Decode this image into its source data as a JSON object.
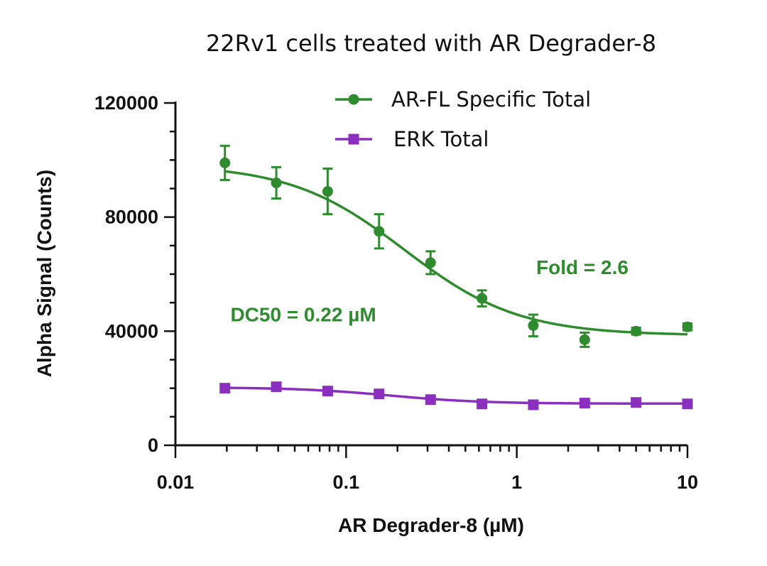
{
  "chart_data": {
    "type": "scatter",
    "title": "22Rv1 cells treated with AR Degrader-8",
    "xlabel": "AR Degrader-8 (µM)",
    "ylabel": "Alpha Signal (Counts)",
    "x_scale": "log",
    "xlim": [
      0.01,
      10
    ],
    "ylim": [
      0,
      120000
    ],
    "x_ticks": [
      0.01,
      0.1,
      1,
      10
    ],
    "x_tick_labels": [
      "0.01",
      "0.1",
      "1",
      "10"
    ],
    "y_ticks": [
      0,
      40000,
      80000,
      120000
    ],
    "y_tick_labels": [
      "0",
      "40000",
      "80000",
      "120000"
    ],
    "legend_position": "top-right",
    "series": [
      {
        "name": "AR-FL Specific Total",
        "color": "#2e8b2e",
        "marker": "circle",
        "x": [
          0.0195,
          0.039,
          0.078,
          0.156,
          0.3125,
          0.625,
          1.25,
          2.5,
          5,
          10
        ],
        "y": [
          99000,
          92000,
          89000,
          75000,
          64000,
          51500,
          42000,
          37000,
          40000,
          41500
        ],
        "error": [
          6000,
          5500,
          8000,
          6000,
          4000,
          2800,
          3800,
          2500,
          1200,
          1200
        ],
        "fit": {
          "top": 98500,
          "bottom": 38500,
          "ec50": 0.22,
          "hill": 1.3
        }
      },
      {
        "name": "ERK Total",
        "color": "#8a2fbe",
        "marker": "square",
        "x": [
          0.0195,
          0.039,
          0.078,
          0.156,
          0.3125,
          0.625,
          1.25,
          2.5,
          5,
          10
        ],
        "y": [
          20000,
          20500,
          19000,
          18000,
          16000,
          14500,
          14200,
          14800,
          15000,
          14500
        ],
        "error": [
          600,
          600,
          600,
          600,
          600,
          500,
          500,
          500,
          500,
          500
        ],
        "fit": {
          "top": 20300,
          "bottom": 14600,
          "ec50": 0.18,
          "hill": 1.6
        }
      }
    ],
    "annotations": [
      {
        "text": "Fold = 2.6",
        "x": 1.3,
        "y": 60000,
        "color": "#2e8b2e"
      },
      {
        "text": "DC50 = 0.22 µM",
        "x": 0.021,
        "y": 43500,
        "color": "#2e8b2e"
      }
    ]
  }
}
